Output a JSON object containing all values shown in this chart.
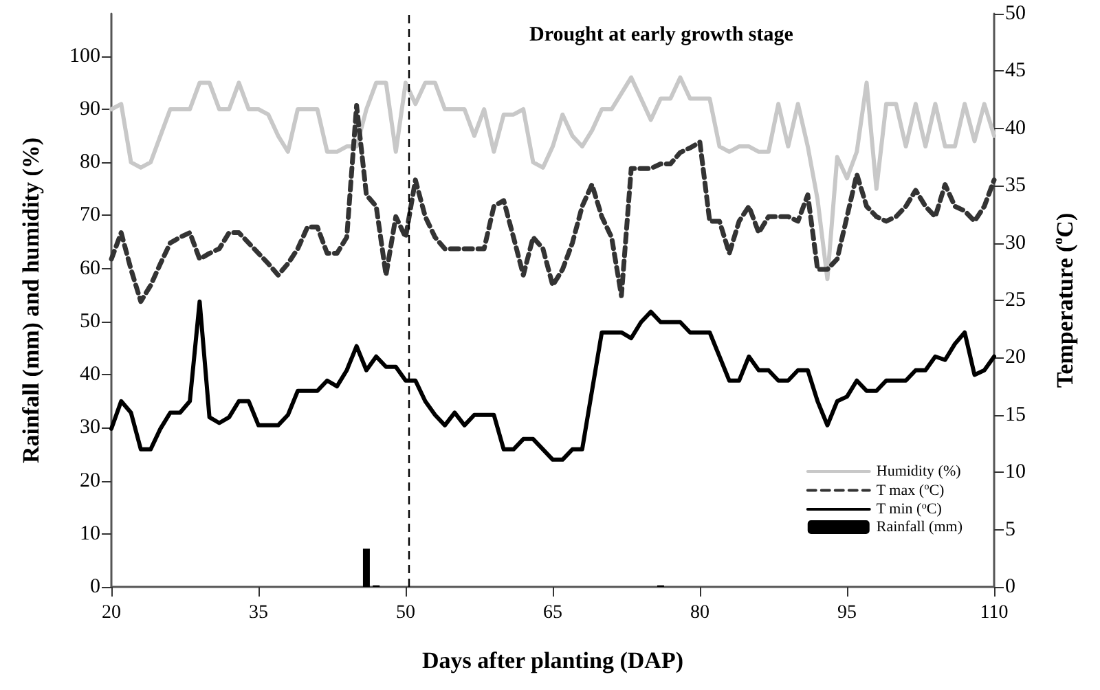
{
  "chart_data": {
    "type": "line",
    "xlabel": "Days after planting (DAP)",
    "ylabel": "Rainfall (mm) and humidity (%)",
    "y2label": "Temperature ($^{o}$C)",
    "annotations": [
      "Drought at early growth stage"
    ],
    "x": [
      20,
      21,
      22,
      23,
      24,
      25,
      26,
      27,
      28,
      29,
      30,
      31,
      32,
      33,
      34,
      35,
      36,
      37,
      38,
      39,
      40,
      41,
      42,
      43,
      44,
      45,
      46,
      47,
      48,
      49,
      50,
      51,
      52,
      53,
      54,
      55,
      56,
      57,
      58,
      59,
      60,
      61,
      62,
      63,
      64,
      65,
      66,
      67,
      68,
      69,
      70,
      71,
      72,
      73,
      74,
      75,
      76,
      77,
      78,
      79,
      80,
      81,
      82,
      83,
      84,
      85,
      86,
      87,
      88,
      89,
      90,
      91,
      92,
      93,
      94,
      95,
      96,
      97,
      98,
      99,
      100,
      101,
      102,
      103,
      104,
      105,
      106,
      107,
      108,
      109,
      110
    ],
    "series": [
      {
        "name": "Humidity (%)",
        "color": "#c8c8c8",
        "line_style": "solid",
        "values": [
          90,
          91,
          80,
          79,
          80,
          85,
          90,
          90,
          90,
          95,
          95,
          90,
          90,
          95,
          90,
          90,
          89,
          85,
          82,
          90,
          90,
          90,
          82,
          82,
          83,
          83,
          90,
          95,
          95,
          82,
          95,
          91,
          95,
          95,
          90,
          90,
          90,
          85,
          90,
          82,
          89,
          89,
          90,
          80,
          79,
          83,
          89,
          85,
          83,
          86,
          90,
          90,
          93,
          96,
          92,
          88,
          92,
          92,
          96,
          92,
          92,
          92,
          83,
          82,
          83,
          83,
          82,
          82,
          91,
          83,
          91,
          83,
          73,
          58,
          81,
          77,
          82,
          95,
          75,
          91,
          91,
          83,
          91,
          83,
          91,
          83,
          83,
          91,
          84,
          91,
          85
        ]
      },
      {
        "name": "T max ($^{o}$C)",
        "color": "#333333",
        "line_style": "dashed",
        "axis": "y2",
        "values": [
          28.6,
          30.9,
          27.7,
          24.9,
          26.3,
          28.2,
          30,
          30.5,
          30.9,
          28.6,
          29.1,
          29.5,
          30.9,
          30.9,
          30,
          29.1,
          28.2,
          27.2,
          28.2,
          29.5,
          31.4,
          31.4,
          29.1,
          29.1,
          30.5,
          42,
          34.2,
          33.2,
          27.2,
          32.3,
          30.5,
          35.5,
          32.3,
          30.5,
          29.5,
          29.5,
          29.5,
          29.5,
          29.5,
          33.2,
          33.7,
          30.5,
          27.2,
          30.5,
          29.5,
          26.3,
          27.7,
          30,
          33.2,
          35.1,
          32.3,
          30.5,
          25.4,
          36.5,
          36.5,
          36.5,
          36.9,
          36.9,
          37.9,
          38.3,
          38.8,
          31.9,
          31.9,
          29.1,
          31.9,
          33.2,
          30.9,
          32.3,
          32.3,
          32.3,
          31.9,
          34.2,
          27.7,
          27.7,
          28.6,
          32.3,
          36,
          33.2,
          32.3,
          31.9,
          32.3,
          33.2,
          34.6,
          33.2,
          32.3,
          35.1,
          33.2,
          32.8,
          31.9,
          33.2,
          35.5
        ]
      },
      {
        "name": "T min ($^{o}$C)",
        "color": "#000000",
        "line_style": "solid",
        "axis": "y2",
        "values": [
          13.8,
          16.2,
          15.2,
          12,
          12,
          13.8,
          15.2,
          15.2,
          16.2,
          24.9,
          14.8,
          14.3,
          14.8,
          16.2,
          16.2,
          14.1,
          14.1,
          14.1,
          15,
          17.1,
          17.1,
          17.1,
          18,
          17.5,
          18.9,
          21,
          18.9,
          20.1,
          19.2,
          19.2,
          18,
          18,
          16.2,
          15,
          14.1,
          15.2,
          14.1,
          15,
          15,
          15,
          12,
          12,
          12.9,
          12.9,
          12,
          11.1,
          11.1,
          12,
          12,
          17.1,
          22.2,
          22.2,
          22.2,
          21.7,
          23.1,
          24,
          23.1,
          23.1,
          23.1,
          22.2,
          22.2,
          22.2,
          20.1,
          18,
          18,
          20.1,
          18.9,
          18.9,
          18,
          18,
          18.9,
          18.9,
          16.2,
          14.1,
          16.2,
          16.6,
          18,
          17.1,
          17.1,
          18,
          18,
          18,
          18.9,
          18.9,
          20.1,
          19.8,
          21.2,
          22.2,
          18.5,
          18.9,
          20.1
        ]
      },
      {
        "name": "Rainfall (mm)",
        "type": "bar",
        "color": "#000000",
        "x": [
          46,
          47,
          76
        ],
        "values": [
          7.2,
          0.3,
          0.3
        ]
      }
    ],
    "xlim": [
      20,
      110
    ],
    "xticks": [
      20,
      35,
      50,
      65,
      80,
      95,
      110
    ],
    "ylim": [
      0,
      108
    ],
    "yticks": [
      0,
      10,
      20,
      30,
      40,
      50,
      60,
      70,
      80,
      90,
      100
    ],
    "y2lim": [
      0,
      50
    ],
    "y2ticks": [
      0,
      5,
      10,
      15,
      20,
      25,
      30,
      35,
      40,
      45,
      50
    ],
    "ref_lines": [
      {
        "axis": "x",
        "value": 50.3,
        "color": "#000000",
        "line_style": "dashed"
      }
    ],
    "grid": false,
    "legend": "bottom right",
    "marker": "none"
  }
}
